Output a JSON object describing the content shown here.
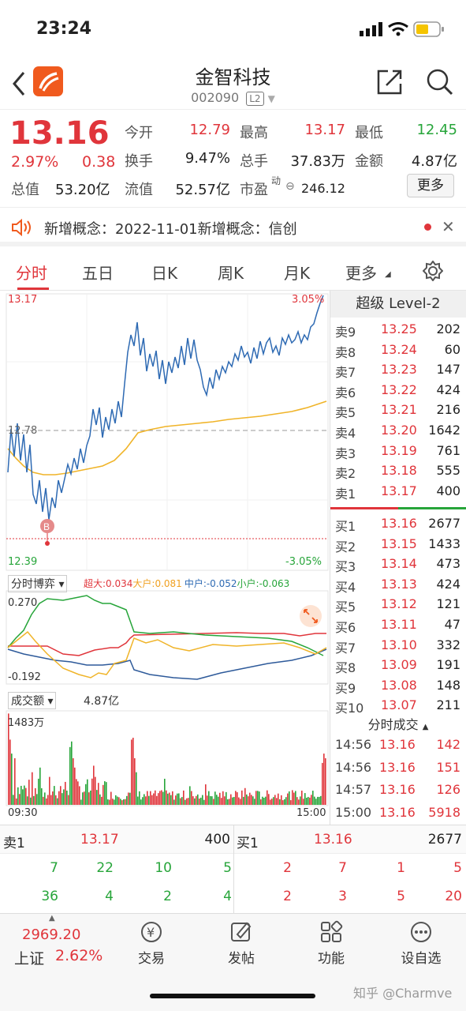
{
  "status_bar": {
    "time": "23:24"
  },
  "header": {
    "name": "金智科技",
    "code": "002090",
    "level_badge": "L2"
  },
  "quote": {
    "price": "13.16",
    "change_pct": "2.97%",
    "change": "0.38",
    "stats": {
      "open_label": "今开",
      "open": "12.79",
      "high_label": "最高",
      "high": "13.17",
      "low_label": "最低",
      "low": "12.45",
      "turnover_label": "换手",
      "turnover": "9.47%",
      "volume_label": "总手",
      "volume": "37.83万",
      "amount_label": "金额",
      "amount": "4.87亿",
      "mktcap_label": "总值",
      "mktcap": "53.20亿",
      "float_label": "流值",
      "float": "52.57亿",
      "pe_label": "市盈",
      "pe_super": "动",
      "pe": "246.12"
    },
    "more_label": "更多"
  },
  "notice": {
    "text": "新增概念：2022-11-01新增概念：信创"
  },
  "tabs": [
    "分时",
    "五日",
    "日K",
    "周K",
    "月K",
    "更多"
  ],
  "chart": {
    "top_price": "13.17",
    "top_pct": "3.05%",
    "bottom_price": "12.39",
    "bottom_pct": "-3.05%",
    "prev_close": "12.78",
    "buy_marker": "B",
    "game_label": "分时博弈",
    "flows": {
      "super": "超大:0.034",
      "large": "大户:0.081",
      "mid": "中户:-0.052",
      "small": "小户:-0.063"
    },
    "game_top": "0.270",
    "game_bottom": "-0.192",
    "vol_label": "成交额",
    "vol_total": "4.87亿",
    "vol_max": "1483万",
    "time_start": "09:30",
    "time_end": "15:00",
    "colors": {
      "price": "#2e6ab3",
      "avg": "#f0b429",
      "up": "#e0353b",
      "down": "#27a53a"
    }
  },
  "orderbook": {
    "title": "超级 Level-2",
    "asks": [
      {
        "label": "卖9",
        "price": "13.25",
        "vol": "202"
      },
      {
        "label": "卖8",
        "price": "13.24",
        "vol": "60"
      },
      {
        "label": "卖7",
        "price": "13.23",
        "vol": "147"
      },
      {
        "label": "卖6",
        "price": "13.22",
        "vol": "424"
      },
      {
        "label": "卖5",
        "price": "13.21",
        "vol": "216"
      },
      {
        "label": "卖4",
        "price": "13.20",
        "vol": "1642"
      },
      {
        "label": "卖3",
        "price": "13.19",
        "vol": "761"
      },
      {
        "label": "卖2",
        "price": "13.18",
        "vol": "555"
      },
      {
        "label": "卖1",
        "price": "13.17",
        "vol": "400"
      }
    ],
    "bids": [
      {
        "label": "买1",
        "price": "13.16",
        "vol": "2677"
      },
      {
        "label": "买2",
        "price": "13.15",
        "vol": "1433"
      },
      {
        "label": "买3",
        "price": "13.14",
        "vol": "473"
      },
      {
        "label": "买4",
        "price": "13.13",
        "vol": "424"
      },
      {
        "label": "买5",
        "price": "13.12",
        "vol": "121"
      },
      {
        "label": "买6",
        "price": "13.11",
        "vol": "47"
      },
      {
        "label": "买7",
        "price": "13.10",
        "vol": "332"
      },
      {
        "label": "买8",
        "price": "13.09",
        "vol": "191"
      },
      {
        "label": "买9",
        "price": "13.08",
        "vol": "148"
      },
      {
        "label": "买10",
        "price": "13.07",
        "vol": "211"
      }
    ],
    "ticks_title": "分时成交",
    "ticks": [
      {
        "time": "14:56",
        "price": "13.16",
        "vol": "142"
      },
      {
        "time": "14:56",
        "price": "13.16",
        "vol": "151"
      },
      {
        "time": "14:57",
        "price": "13.16",
        "vol": "126"
      },
      {
        "time": "15:00",
        "price": "13.16",
        "vol": "5918"
      }
    ]
  },
  "bottom_quotes": {
    "sell_label": "卖1",
    "sell_price": "13.17",
    "sell_vol": "400",
    "buy_label": "买1",
    "buy_price": "13.16",
    "buy_vol": "2677",
    "sell_queue": [
      [
        "7",
        "22",
        "10",
        "5"
      ],
      [
        "36",
        "4",
        "2",
        "4"
      ]
    ],
    "buy_queue": [
      [
        "2",
        "7",
        "1",
        "5"
      ],
      [
        "2",
        "3",
        "5",
        "20"
      ]
    ]
  },
  "bottom_nav": {
    "index_value": "2969.20",
    "index_name": "上证",
    "index_pct": "2.62%",
    "items": [
      "交易",
      "发帖",
      "功能",
      "设自选"
    ]
  },
  "watermark": "知乎 @Charmve"
}
